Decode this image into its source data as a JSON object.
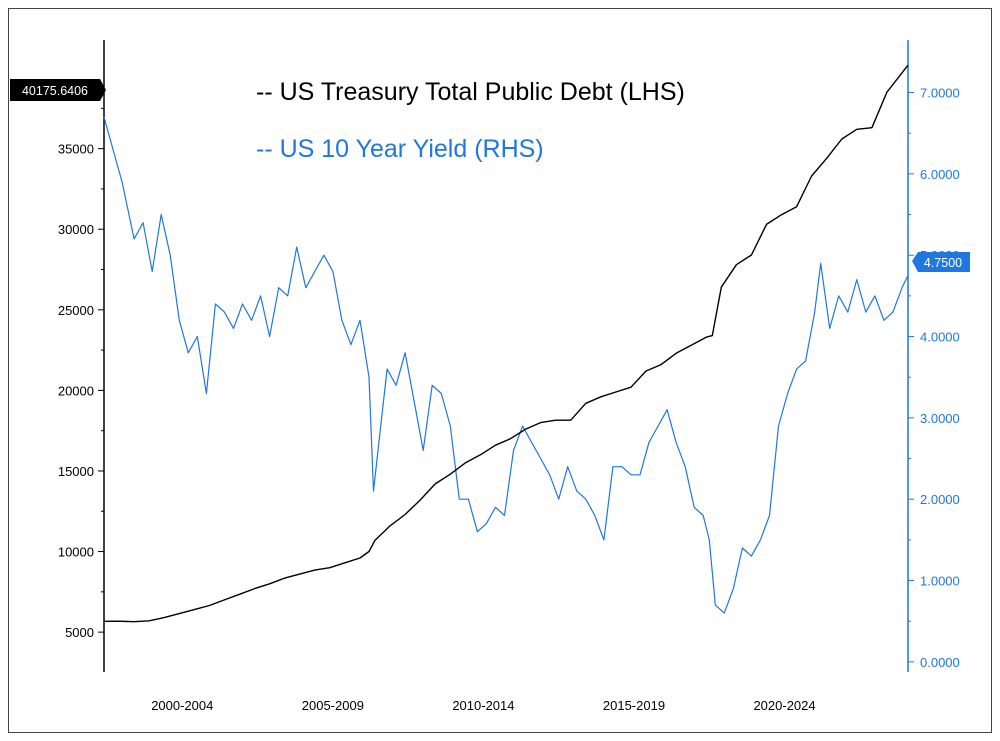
{
  "chart_data": {
    "type": "line",
    "legend": [
      {
        "label": "-- US Treasury Total Public Debt (LHS)",
        "color": "#000000"
      },
      {
        "label": "-- US 10 Year Yield (RHS)",
        "color": "#1f77e0"
      }
    ],
    "x_tick_labels": [
      "2000-2004",
      "2005-2009",
      "2010-2014",
      "2015-2019",
      "2020-2024"
    ],
    "x_range": [
      2000,
      2026.7
    ],
    "left_axis": {
      "ticks": [
        5000,
        10000,
        15000,
        20000,
        25000,
        30000,
        35000
      ],
      "range": [
        2650,
        40500
      ],
      "last_value_label": "40175.6406",
      "color": "#000000"
    },
    "right_axis": {
      "ticks": [
        0,
        1,
        2,
        3,
        4,
        5,
        6,
        7
      ],
      "tick_labels": [
        "0.0000",
        "1.0000",
        "2.0000",
        "3.0000",
        "4.0000",
        "5.0000",
        "6.0000",
        "7.0000"
      ],
      "range": [
        -0.1,
        7.4
      ],
      "last_value_label": "4.7500",
      "color": "#1f77e0"
    },
    "series": [
      {
        "axis": "left",
        "color": "#000000",
        "x": [
          2000,
          2000.5,
          2001,
          2001.5,
          2002,
          2002.5,
          2003,
          2003.5,
          2004,
          2004.5,
          2005,
          2005.5,
          2006,
          2006.5,
          2007,
          2007.5,
          2008,
          2008.5,
          2008.8,
          2009,
          2009.5,
          2010,
          2010.5,
          2011,
          2011.5,
          2012,
          2012.5,
          2013,
          2013.5,
          2014,
          2014.5,
          2015,
          2015.5,
          2016,
          2016.5,
          2017,
          2017.5,
          2018,
          2018.5,
          2019,
          2019.5,
          2020,
          2020.2,
          2020.5,
          2021,
          2021.5,
          2022,
          2022.5,
          2023,
          2023.5,
          2024,
          2024.5,
          2025,
          2025.5,
          2026,
          2026.7
        ],
        "values": [
          5670,
          5680,
          5650,
          5700,
          5900,
          6150,
          6400,
          6650,
          7000,
          7350,
          7700,
          8000,
          8350,
          8600,
          8850,
          9000,
          9300,
          9600,
          10000,
          10700,
          11600,
          12300,
          13200,
          14200,
          14800,
          15500,
          16000,
          16600,
          17000,
          17600,
          18000,
          18150,
          18150,
          19200,
          19600,
          19900,
          20200,
          21200,
          21600,
          22300,
          22800,
          23300,
          23400,
          26400,
          27800,
          28400,
          30300,
          30900,
          31400,
          33300,
          34400,
          35600,
          36200,
          36300,
          38500,
          40175.6406
        ]
      },
      {
        "axis": "right",
        "color": "#1f77e0",
        "x": [
          2000,
          2000.3,
          2000.6,
          2001,
          2001.3,
          2001.6,
          2001.9,
          2002.2,
          2002.5,
          2002.8,
          2003.1,
          2003.4,
          2003.7,
          2004,
          2004.3,
          2004.6,
          2004.9,
          2005.2,
          2005.5,
          2005.8,
          2006.1,
          2006.4,
          2006.7,
          2007,
          2007.3,
          2007.6,
          2007.9,
          2008.2,
          2008.5,
          2008.8,
          2008.95,
          2009.1,
          2009.4,
          2009.7,
          2010,
          2010.3,
          2010.6,
          2010.9,
          2011.2,
          2011.5,
          2011.8,
          2012.1,
          2012.4,
          2012.7,
          2013,
          2013.3,
          2013.6,
          2013.9,
          2014.2,
          2014.5,
          2014.8,
          2015.1,
          2015.4,
          2015.7,
          2016,
          2016.3,
          2016.6,
          2016.9,
          2017.2,
          2017.5,
          2017.8,
          2018.1,
          2018.4,
          2018.7,
          2019,
          2019.3,
          2019.6,
          2019.9,
          2020.1,
          2020.3,
          2020.6,
          2020.9,
          2021.2,
          2021.5,
          2021.8,
          2022.1,
          2022.4,
          2022.7,
          2023,
          2023.3,
          2023.6,
          2023.8,
          2024.1,
          2024.4,
          2024.7,
          2025,
          2025.3,
          2025.6,
          2025.9,
          2026.2,
          2026.5,
          2026.7
        ],
        "values": [
          6.7,
          6.3,
          5.9,
          5.2,
          5.4,
          4.8,
          5.5,
          5.0,
          4.2,
          3.8,
          4.0,
          3.3,
          4.4,
          4.3,
          4.1,
          4.4,
          4.2,
          4.5,
          4.0,
          4.6,
          4.5,
          5.1,
          4.6,
          4.8,
          5.0,
          4.8,
          4.2,
          3.9,
          4.2,
          3.5,
          2.1,
          2.6,
          3.6,
          3.4,
          3.8,
          3.2,
          2.6,
          3.4,
          3.3,
          2.9,
          2.0,
          2.0,
          1.6,
          1.7,
          1.9,
          1.8,
          2.6,
          2.9,
          2.7,
          2.5,
          2.3,
          2.0,
          2.4,
          2.1,
          2.0,
          1.8,
          1.5,
          2.4,
          2.4,
          2.3,
          2.3,
          2.7,
          2.9,
          3.1,
          2.7,
          2.4,
          1.9,
          1.8,
          1.5,
          0.7,
          0.6,
          0.9,
          1.4,
          1.3,
          1.5,
          1.8,
          2.9,
          3.3,
          3.6,
          3.7,
          4.3,
          4.9,
          4.1,
          4.5,
          4.3,
          4.7,
          4.3,
          4.5,
          4.2,
          4.3,
          4.6,
          4.75
        ]
      }
    ]
  }
}
